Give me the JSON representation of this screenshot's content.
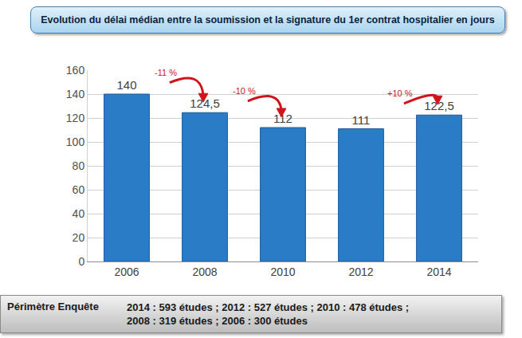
{
  "chart_data": {
    "type": "bar",
    "title": "Evolution du délai médian entre la soumission et la signature du 1er contrat hospitalier en jours",
    "categories": [
      "2006",
      "2008",
      "2010",
      "2012",
      "2014"
    ],
    "values": [
      140,
      124.5,
      112,
      111,
      122.5
    ],
    "value_labels": [
      "140",
      "124,5",
      "112",
      "111",
      "122,5"
    ],
    "data_labels": true,
    "color": "#2b7cc6",
    "ylim": [
      0,
      160
    ],
    "yticks": [
      0,
      20,
      40,
      60,
      80,
      100,
      120,
      140,
      160
    ],
    "grid": true,
    "annotations": [
      {
        "text": "-11 %",
        "from": "2006",
        "to": "2008"
      },
      {
        "text": "-10 %",
        "from": "2008",
        "to": "2010"
      },
      {
        "text": "+10 %",
        "from": "2012",
        "to": "2014"
      }
    ],
    "footer": {
      "label": "Périmètre Enquête",
      "lines": [
        "2014 : 593 études ; 2012 : 527 études ; 2010 : 478 études ;",
        "2008 : 319 études ; 2006 : 300 études"
      ]
    }
  }
}
